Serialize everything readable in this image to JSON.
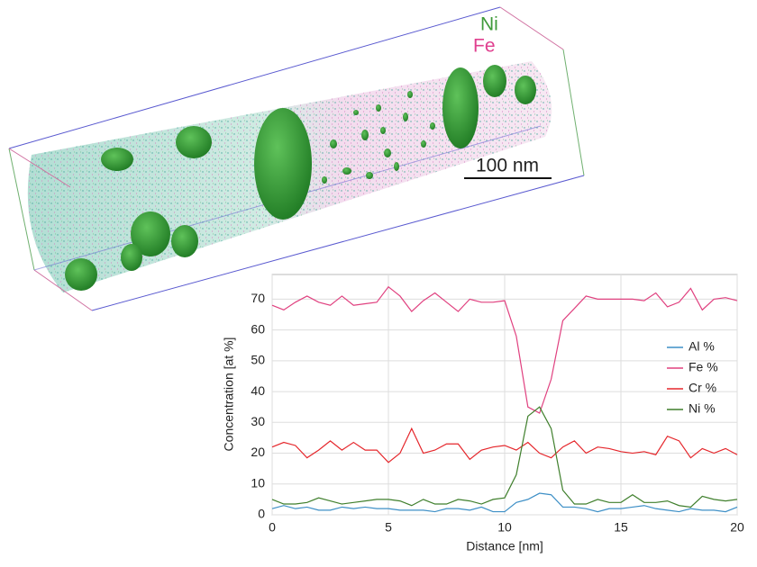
{
  "image_labels": {
    "ni": "Ni",
    "fe": "Fe",
    "scale_bar": "100 nm"
  },
  "chart_data": {
    "type": "line",
    "x_label": "Distance [nm]",
    "y_label": "Concentration [at %]",
    "x": [
      0,
      0.5,
      1,
      1.5,
      2,
      2.5,
      3,
      3.5,
      4,
      4.5,
      5,
      5.5,
      6,
      6.5,
      7,
      7.5,
      8,
      8.5,
      9,
      9.5,
      10,
      10.5,
      11,
      11.5,
      12,
      12.5,
      13,
      13.5,
      14,
      14.5,
      15,
      15.5,
      16,
      16.5,
      17,
      17.5,
      18,
      18.5,
      19,
      19.5,
      20
    ],
    "series": [
      {
        "name": "Al %",
        "color": "#3d8fc6",
        "values": [
          2,
          3,
          2,
          2.5,
          1.5,
          1.5,
          2.5,
          2,
          2.5,
          2,
          2,
          1.5,
          1.5,
          1.5,
          1,
          2,
          2,
          1.5,
          2.5,
          1,
          1,
          4,
          5,
          7,
          6.5,
          2.5,
          2.5,
          2,
          1,
          2,
          2,
          2.5,
          3,
          2,
          1.5,
          1,
          2,
          1.5,
          1.5,
          1,
          2.5
        ]
      },
      {
        "name": "Fe %",
        "color": "#e0407f",
        "values": [
          68,
          66.5,
          69,
          71,
          69,
          68,
          71,
          68,
          68.5,
          69,
          74,
          71,
          66,
          69.5,
          72,
          69,
          66,
          70,
          69,
          69,
          69.5,
          58,
          35,
          33,
          44,
          63,
          67,
          71,
          70,
          70,
          70,
          70,
          69.5,
          72,
          67.5,
          69,
          73.5,
          66.5,
          70,
          70.5,
          69.5
        ]
      },
      {
        "name": "Cr %",
        "color": "#e5262b",
        "values": [
          22,
          23.5,
          22.5,
          18.5,
          21,
          24,
          21,
          23.5,
          21,
          21,
          17,
          20,
          28,
          20,
          21,
          23,
          23,
          18,
          21,
          22,
          22.5,
          21,
          23.5,
          20,
          18.5,
          22,
          24,
          20,
          22,
          21.5,
          20.5,
          20,
          20.5,
          19.5,
          25.5,
          24,
          18.5,
          21.5,
          20,
          21.5,
          19.5
        ]
      },
      {
        "name": "Ni %",
        "color": "#3f7f2c",
        "values": [
          5,
          3.5,
          3.5,
          4,
          5.5,
          4.5,
          3.5,
          4,
          4.5,
          5,
          5,
          4.5,
          3,
          5,
          3.5,
          3.5,
          5,
          4.5,
          3.5,
          5,
          5.5,
          13,
          32,
          35,
          28,
          8,
          3.5,
          3.5,
          5,
          4,
          4,
          6.5,
          4,
          4,
          4.5,
          3,
          2.5,
          6,
          5,
          4.5,
          5
        ]
      }
    ],
    "xlim": [
      0,
      20
    ],
    "ylim": [
      0,
      78
    ],
    "xticks": [
      0,
      5,
      10,
      15,
      20
    ],
    "yticks": [
      0,
      10,
      20,
      30,
      40,
      50,
      60,
      70
    ],
    "grid": true,
    "legend": "right"
  }
}
